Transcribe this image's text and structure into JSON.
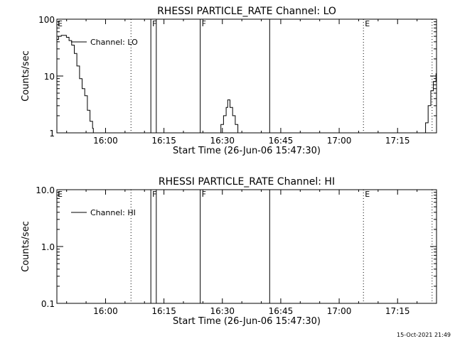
{
  "footer": {
    "timestamp": "15-Oct-2021 21:49"
  },
  "chart_data": [
    {
      "type": "line",
      "title": "RHESSI PARTICLE_RATE Channel: LO",
      "xlabel": "Start Time (26-Jun-06 15:47:30)",
      "ylabel": "Counts/sec",
      "y_scale": "log",
      "xlim": [
        "15:47:30",
        "17:25:00"
      ],
      "ylim": [
        1,
        100
      ],
      "x_ticks": [
        "16:00",
        "16:15",
        "16:30",
        "16:45",
        "17:00",
        "17:15"
      ],
      "y_ticks": [
        "1",
        "10",
        "100"
      ],
      "legend": {
        "position": "top-left",
        "entries": [
          "Channel: LO"
        ]
      },
      "series": [
        {
          "name": "Channel: LO",
          "segments": [
            {
              "x": [
                "15:47:30",
                "15:47:56",
                "15:48:37",
                "15:49:57",
                "15:50:37",
                "15:51:18",
                "15:51:58",
                "15:52:38",
                "15:53:19",
                "15:53:59",
                "15:54:39",
                "15:55:20",
                "15:56:00",
                "15:56:40",
                "15:56:52"
              ],
              "y": [
                44,
                50,
                52,
                48,
                42,
                35,
                25,
                15,
                9,
                6,
                4.5,
                2.5,
                1.6,
                1.2,
                1
              ]
            },
            {
              "x": [
                "16:28:57",
                "16:29:37",
                "16:30:18",
                "16:30:58",
                "16:31:22",
                "16:31:58",
                "16:32:38",
                "16:33:19",
                "16:33:59"
              ],
              "y": [
                1,
                1.4,
                2,
                2.8,
                3.8,
                2.8,
                2,
                1.4,
                1
              ]
            },
            {
              "x": [
                "17:21:01",
                "17:22:11",
                "17:22:51",
                "17:23:32",
                "17:24:12",
                "17:24:52",
                "17:25:00"
              ],
              "y": [
                1,
                1.5,
                3,
                5.5,
                8,
                11,
                13
              ]
            }
          ]
        }
      ],
      "event_markers": [
        {
          "time": "16:06:32",
          "style": "dotted",
          "label": ""
        },
        {
          "time": "16:11:38",
          "style": "solid",
          "label": "F"
        },
        {
          "time": "16:13:02",
          "style": "solid",
          "label": ""
        },
        {
          "time": "16:24:19",
          "style": "solid",
          "label": "F"
        },
        {
          "time": "16:42:09",
          "style": "solid",
          "label": ""
        },
        {
          "time": "17:06:14",
          "style": "dotted",
          "label": "E"
        },
        {
          "time": "17:23:52",
          "style": "dotted",
          "label": ""
        }
      ],
      "start_label": "E"
    },
    {
      "type": "line",
      "title": "RHESSI PARTICLE_RATE Channel: HI",
      "xlabel": "Start Time (26-Jun-06 15:47:30)",
      "ylabel": "Counts/sec",
      "y_scale": "log",
      "xlim": [
        "15:47:30",
        "17:25:00"
      ],
      "ylim": [
        0.1,
        10
      ],
      "x_ticks": [
        "16:00",
        "16:15",
        "16:30",
        "16:45",
        "17:00",
        "17:15"
      ],
      "y_ticks": [
        "0.1",
        "1.0",
        "10.0"
      ],
      "legend": {
        "position": "top-left",
        "entries": [
          "Channel: HI"
        ]
      },
      "series": [
        {
          "name": "Channel: HI",
          "segments": []
        }
      ],
      "event_markers": [
        {
          "time": "16:06:32",
          "style": "dotted",
          "label": ""
        },
        {
          "time": "16:11:38",
          "style": "solid",
          "label": "F"
        },
        {
          "time": "16:13:02",
          "style": "solid",
          "label": ""
        },
        {
          "time": "16:24:19",
          "style": "solid",
          "label": "F"
        },
        {
          "time": "16:42:09",
          "style": "solid",
          "label": ""
        },
        {
          "time": "17:06:14",
          "style": "dotted",
          "label": "E"
        },
        {
          "time": "17:23:52",
          "style": "dotted",
          "label": ""
        }
      ],
      "start_label": "E"
    }
  ]
}
